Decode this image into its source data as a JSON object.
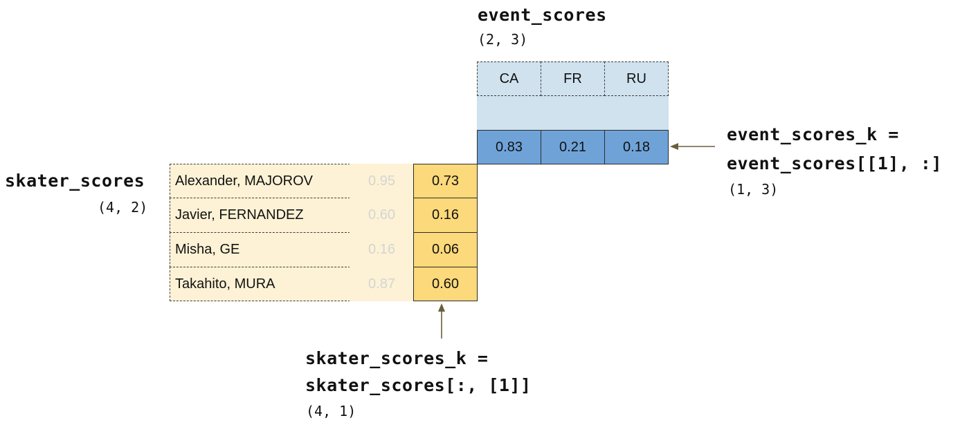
{
  "event": {
    "title": "event_scores",
    "shape": "(2, 3)",
    "headers": [
      "CA",
      "FR",
      "RU"
    ],
    "faded_row": [
      "",
      "",
      ""
    ],
    "selected_row": [
      "0.83",
      "0.21",
      "0.18"
    ],
    "colors": {
      "header_fill": "#cfe2ee",
      "selected_fill": "#6fa3d8"
    }
  },
  "event_k": {
    "line1": "event_scores_k =",
    "line2": "event_scores[[1], :]",
    "shape": "(1, 3)"
  },
  "skater": {
    "title": "skater_scores",
    "shape": "(4, 2)",
    "names": [
      "Alexander, MAJOROV",
      "Javier, FERNANDEZ",
      "Misha, GE",
      "Takahito, MURA"
    ],
    "faded_col": [
      "0.95",
      "0.60",
      "0.16",
      "0.87"
    ],
    "selected_col": [
      "0.73",
      "0.16",
      "0.06",
      "0.60"
    ],
    "colors": {
      "name_fill": "#fdf2d5",
      "selected_fill": "#fcd97a"
    }
  },
  "skater_k": {
    "line1": "skater_scores_k =",
    "line2": "skater_scores[:, [1]]",
    "shape": "(4, 1)"
  }
}
